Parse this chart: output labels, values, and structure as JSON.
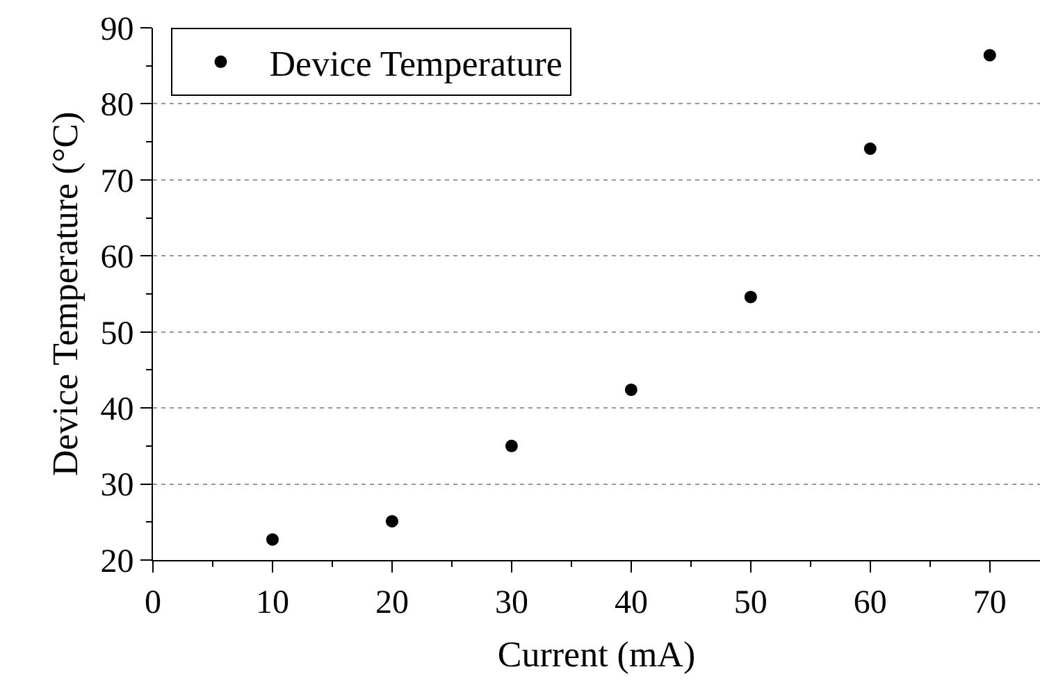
{
  "chart_data": {
    "type": "scatter",
    "xlabel": "Current (mA)",
    "ylabel": "Device Temperature (°C)",
    "x": [
      10,
      20,
      30,
      40,
      50,
      60,
      70
    ],
    "series": [
      {
        "name": "Device Temperature",
        "color": "#000000",
        "values": [
          22.7,
          25.1,
          35.0,
          42.4,
          54.6,
          74.1,
          86.4
        ]
      }
    ],
    "xlim": [
      0,
      74.2
    ],
    "xticks": [
      0,
      10,
      20,
      30,
      40,
      50,
      60,
      70
    ],
    "ylim": [
      20,
      90
    ],
    "yticks": [
      20,
      30,
      40,
      50,
      60,
      70,
      80,
      90
    ],
    "grid": "y",
    "legend": "top left",
    "marker": "circle"
  }
}
